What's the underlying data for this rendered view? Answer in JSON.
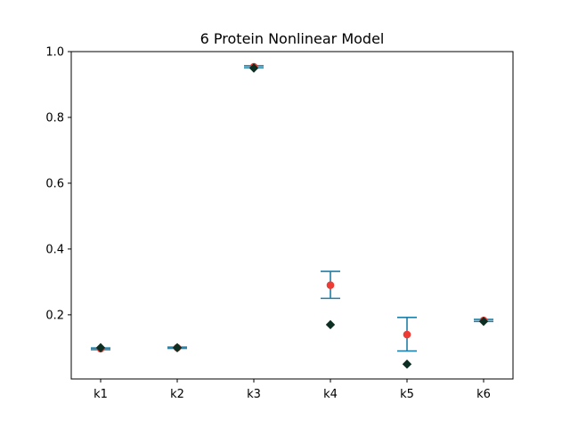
{
  "chart_data": {
    "type": "scatter",
    "title": "6 Protein Nonlinear Model",
    "xlabel": "",
    "ylabel": "",
    "categories": [
      "k1",
      "k2",
      "k3",
      "k4",
      "k5",
      "k6"
    ],
    "ylim": [
      0.005,
      1.0
    ],
    "yticks": [
      0.2,
      0.4,
      0.6,
      0.8,
      1.0
    ],
    "ytick_labels": [
      "0.2",
      "0.4",
      "0.6",
      "0.8",
      "1.0"
    ],
    "grid": false,
    "series": [
      {
        "kind": "estimate-with-errorbar",
        "color": "#ee3b33",
        "errorbar_color": "#1f7fa6",
        "values": [
          0.097,
          0.1,
          0.954,
          0.29,
          0.14,
          0.183
        ],
        "lower": [
          0.094,
          0.098,
          0.951,
          0.25,
          0.09,
          0.18
        ],
        "upper": [
          0.099,
          0.102,
          0.957,
          0.332,
          0.192,
          0.186
        ]
      },
      {
        "kind": "true-value",
        "marker": "diamond",
        "color": "#0d2e22",
        "values": [
          0.1,
          0.1,
          0.95,
          0.17,
          0.05,
          0.18
        ]
      }
    ]
  }
}
